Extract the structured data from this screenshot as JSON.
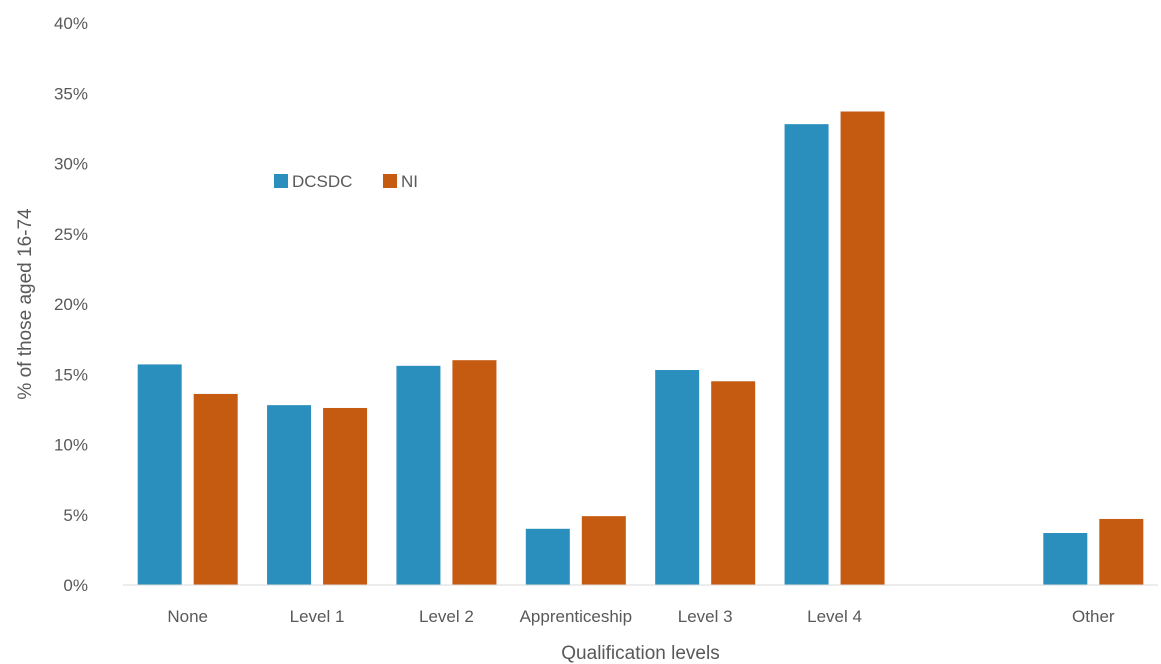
{
  "chart_data": {
    "type": "bar",
    "categories": [
      "None",
      "Level 1",
      "Level 2",
      "Apprenticeship",
      "Level 3",
      "Level 4",
      "",
      "Other"
    ],
    "series": [
      {
        "name": "DCSDC",
        "color": "#2A8FBD",
        "values": [
          15.7,
          12.8,
          15.6,
          4.0,
          15.3,
          32.8,
          null,
          3.7
        ]
      },
      {
        "name": "NI",
        "color": "#C55A11",
        "values": [
          13.6,
          12.6,
          16.0,
          4.9,
          14.5,
          33.7,
          null,
          4.7
        ]
      }
    ],
    "xlabel": "Qualification levels",
    "ylabel": "% of those aged 16-74",
    "ylim": [
      0,
      40
    ],
    "yticks": [
      0,
      5,
      10,
      15,
      20,
      25,
      30,
      35,
      40
    ],
    "ytick_format": "{v}%",
    "grid": false,
    "legend_position": "upper-left inside plot"
  }
}
